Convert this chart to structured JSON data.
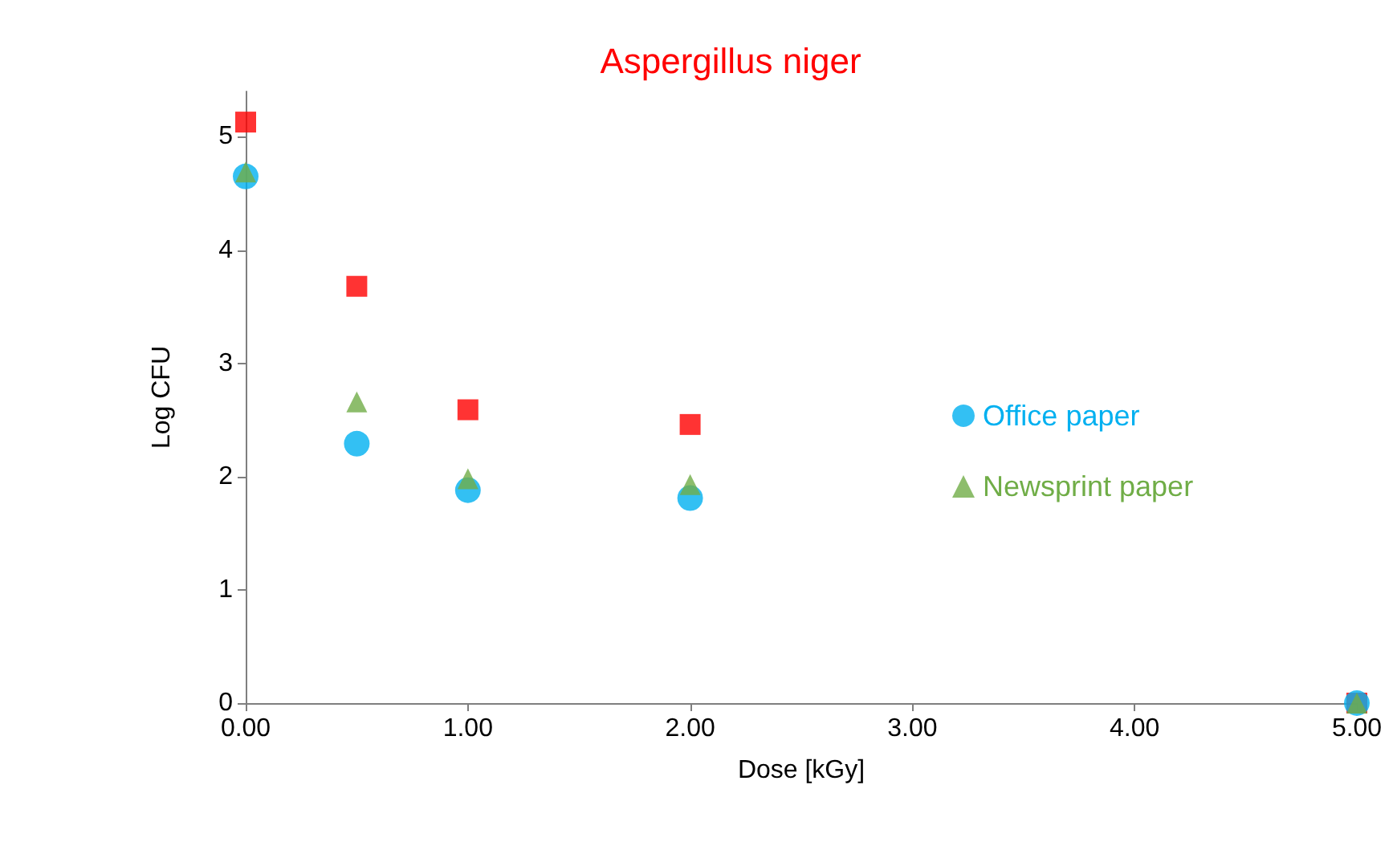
{
  "chart_data": {
    "type": "scatter",
    "title": "Aspergillus niger",
    "xlabel": "Dose [kGy]",
    "ylabel": "Log CFU",
    "x": [
      0,
      0.5,
      1,
      2,
      5
    ],
    "series": [
      {
        "color": "#ff0000",
        "marker": "square",
        "values": [
          5.13,
          3.68,
          2.59,
          2.46,
          0
        ]
      },
      {
        "name": "Office paper",
        "color": "#00b0f0",
        "marker": "circle",
        "values": [
          4.65,
          2.29,
          1.88,
          1.81,
          0
        ]
      },
      {
        "name": "Newsprint paper",
        "color": "#70ad47",
        "marker": "triangle",
        "values": [
          4.69,
          2.66,
          1.98,
          1.93,
          0
        ]
      }
    ],
    "xlim": [
      0,
      5
    ],
    "xticks": [
      {
        "value": 0,
        "label": "0.00"
      },
      {
        "value": 1,
        "label": "1.00"
      },
      {
        "value": 2,
        "label": "2.00"
      },
      {
        "value": 3,
        "label": "3.00"
      },
      {
        "value": 4,
        "label": "4.00"
      },
      {
        "value": 5,
        "label": "5.00"
      }
    ],
    "ylim": [
      0,
      5.4
    ],
    "yticks": [
      0,
      1,
      2,
      3,
      4,
      5
    ],
    "grid": false,
    "legend": "right"
  }
}
